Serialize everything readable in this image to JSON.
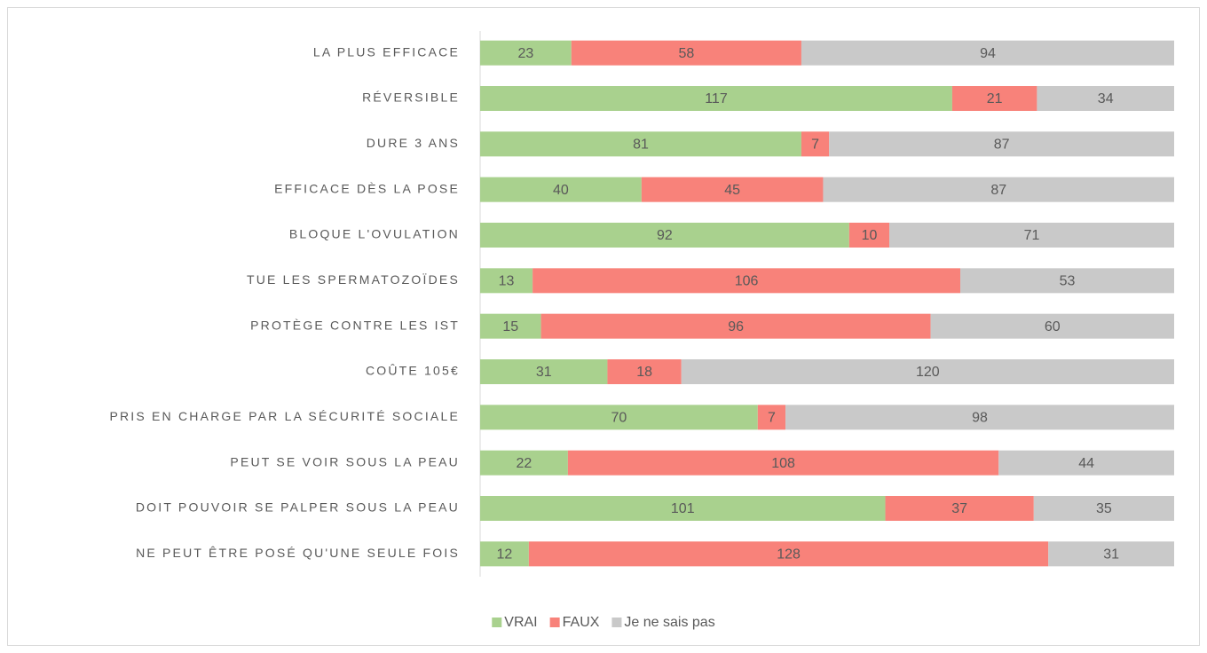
{
  "chart_data": {
    "type": "bar",
    "orientation": "horizontal",
    "stacking": "percent",
    "categories": [
      "LA PLUS EFFICACE",
      "RÉVERSIBLE",
      "DURE 3 ANS ",
      "EFFICACE DÈS LA POSE",
      "BLOQUE L'OVULATION ",
      "TUE LES SPERMATOZOÏDES ",
      "PROTÈGE CONTRE LES IST",
      "COÛTE 105€",
      "PRIS EN CHARGE PAR LA SÉCURITÉ SOCIALE",
      "PEUT SE VOIR SOUS LA PEAU",
      "DOIT POUVOIR SE PALPER SOUS LA PEAU",
      "NE PEUT ÊTRE POSÉ QU'UNE SEULE FOIS"
    ],
    "series": [
      {
        "name": "VRAI",
        "color": "#a9d18e",
        "values": [
          23,
          117,
          81,
          40,
          92,
          13,
          15,
          31,
          70,
          22,
          101,
          12
        ]
      },
      {
        "name": "FAUX",
        "color": "#f8827a",
        "values": [
          58,
          21,
          7,
          45,
          10,
          106,
          96,
          18,
          7,
          108,
          37,
          128
        ]
      },
      {
        "name": "Je ne sais pas",
        "color": "#c9c9c9",
        "values": [
          94,
          34,
          87,
          87,
          71,
          53,
          60,
          120,
          98,
          44,
          35,
          31
        ]
      }
    ],
    "legend": "bottom"
  }
}
